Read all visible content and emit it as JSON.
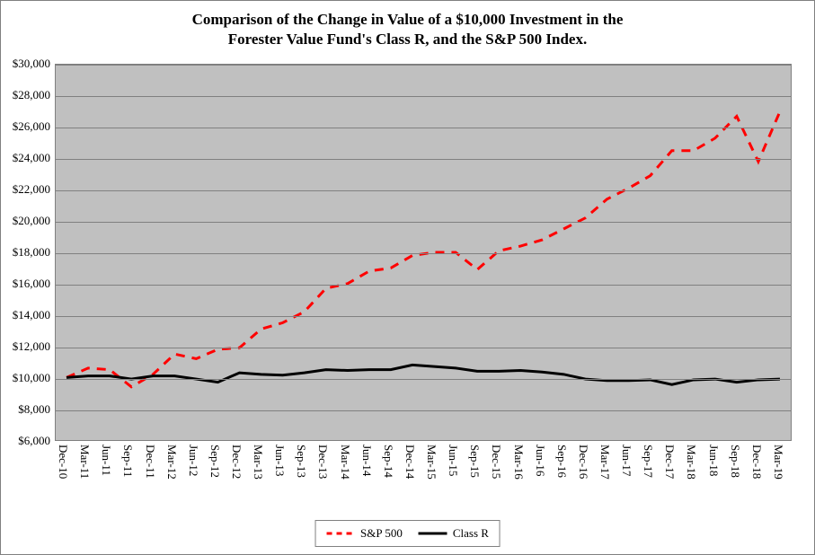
{
  "chart": {
    "type": "line",
    "title_line1": "Comparison of the Change in Value of a $10,000 Investment in the",
    "title_line2": "Forester Value Fund's Class R, and the S&P 500 Index.",
    "title_fontsize": 17,
    "title_fontweight": "bold",
    "background_color": "#ffffff",
    "plot_background_color": "#c0c0c0",
    "grid_color": "#808080",
    "border_color": "#808080",
    "ylim": [
      6000,
      30000
    ],
    "ytick_step": 2000,
    "y_tick_labels": [
      "$6,000",
      "$8,000",
      "$10,000",
      "$12,000",
      "$14,000",
      "$16,000",
      "$18,000",
      "$20,000",
      "$22,000",
      "$24,000",
      "$26,000",
      "$28,000",
      "$30,000"
    ],
    "y_tick_values": [
      6000,
      8000,
      10000,
      12000,
      14000,
      16000,
      18000,
      20000,
      22000,
      24000,
      26000,
      28000,
      30000
    ],
    "x_categories": [
      "Dec-10",
      "Mar-11",
      "Jun-11",
      "Sep-11",
      "Dec-11",
      "Mar-12",
      "Jun-12",
      "Sep-12",
      "Dec-12",
      "Mar-13",
      "Jun-13",
      "Sep-13",
      "Dec-13",
      "Mar-14",
      "Jun-14",
      "Sep-14",
      "Dec-14",
      "Mar-15",
      "Jun-15",
      "Sep-15",
      "Dec-15",
      "Mar-16",
      "Jun-16",
      "Sep-16",
      "Dec-16",
      "Mar-17",
      "Jun-17",
      "Sep-17",
      "Dec-17",
      "Mar-18",
      "Jun-18",
      "Sep-18",
      "Dec-18",
      "Mar-19"
    ],
    "x_label_fontsize": 13,
    "y_label_fontsize": 13,
    "series": [
      {
        "name": "S&P 500",
        "color": "#ff0000",
        "line_width": 3,
        "style": "dashed",
        "dash_pattern": "10,8",
        "values": [
          10000,
          10600,
          10500,
          9400,
          10200,
          11500,
          11200,
          11800,
          11900,
          13100,
          13500,
          14200,
          15700,
          16000,
          16800,
          17000,
          17800,
          18000,
          18000,
          16900,
          18100,
          18400,
          18800,
          19500,
          20200,
          21400,
          22100,
          22900,
          24500,
          24500,
          25300,
          26700,
          23800,
          27000
        ]
      },
      {
        "name": "Class R",
        "color": "#000000",
        "line_width": 3,
        "style": "solid",
        "values": [
          10000,
          10100,
          10100,
          9900,
          10100,
          10100,
          9900,
          9700,
          10300,
          10200,
          10150,
          10300,
          10500,
          10450,
          10500,
          10500,
          10800,
          10700,
          10600,
          10400,
          10400,
          10450,
          10350,
          10200,
          9900,
          9800,
          9800,
          9850,
          9550,
          9850,
          9900,
          9700,
          9850,
          9900
        ]
      }
    ],
    "legend": {
      "position": "bottom",
      "items": [
        {
          "label": "S&P 500",
          "color": "#ff0000",
          "style": "dashed"
        },
        {
          "label": "Class R",
          "color": "#000000",
          "style": "solid"
        }
      ]
    }
  }
}
